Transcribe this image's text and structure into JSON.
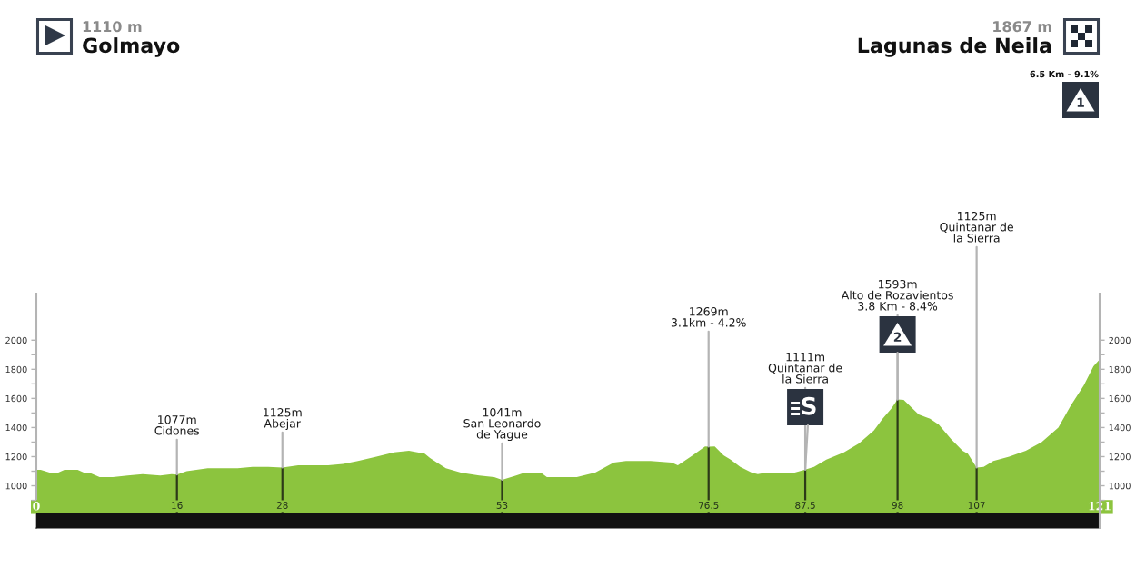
{
  "chart_data": {
    "type": "area",
    "color": "#8cc43e",
    "x": [
      0,
      0.5,
      1.5,
      2.5,
      3.2,
      4.7,
      5.4,
      6.0,
      7.2,
      8.7,
      10.4,
      12.1,
      14.1,
      15.4,
      16,
      17.1,
      19.5,
      21.6,
      22.9,
      24.6,
      26.4,
      28,
      29.8,
      33.2,
      34.9,
      36.6,
      38.7,
      40.7,
      42.4,
      44.2,
      44.8,
      46.6,
      48.3,
      50.4,
      52.1,
      53,
      54.6,
      55.6,
      57.4,
      58.1,
      60.1,
      61.5,
      63.6,
      65.7,
      67.1,
      67.8,
      69.9,
      72.3,
      73.0,
      74.7,
      76.1,
      76.5,
      77.2,
      78.2,
      79.0,
      80.1,
      81.4,
      82.1,
      83.1,
      84.9,
      86.3,
      87.5,
      88.5,
      89.9,
      91.9,
      93.6,
      95.3,
      96.3,
      97.3,
      98,
      98.7,
      100.4,
      101.7,
      102.7,
      104.1,
      105.4,
      106.0,
      107,
      107.8,
      108.9,
      110.7,
      112.6,
      114.4,
      116.3,
      117.7,
      119.2,
      120.3,
      121
    ],
    "values": [
      1110,
      1110,
      1090,
      1090,
      1110,
      1110,
      1090,
      1090,
      1060,
      1060,
      1070,
      1080,
      1070,
      1080,
      1077,
      1100,
      1120,
      1120,
      1120,
      1130,
      1130,
      1125,
      1140,
      1140,
      1150,
      1170,
      1200,
      1230,
      1240,
      1220,
      1190,
      1120,
      1090,
      1070,
      1060,
      1041,
      1070,
      1090,
      1090,
      1060,
      1060,
      1060,
      1090,
      1160,
      1170,
      1170,
      1170,
      1160,
      1140,
      1210,
      1270,
      1269,
      1270,
      1210,
      1180,
      1130,
      1090,
      1080,
      1090,
      1090,
      1090,
      1111,
      1130,
      1180,
      1230,
      1290,
      1380,
      1460,
      1530,
      1593,
      1590,
      1490,
      1460,
      1420,
      1320,
      1240,
      1220,
      1125,
      1130,
      1170,
      1200,
      1240,
      1300,
      1400,
      1550,
      1690,
      1820,
      1867
    ],
    "xlim": [
      0,
      121
    ],
    "xticks": [
      0,
      16,
      28,
      53,
      76.5,
      87.5,
      98,
      107,
      121
    ],
    "ylim": [
      710,
      2320
    ],
    "yticks": [
      {
        "value": 900,
        "label": null
      },
      1000,
      {
        "value": 1100,
        "label": null
      },
      1200,
      {
        "value": 1300,
        "label": null
      },
      1400,
      {
        "value": 1500,
        "label": null
      },
      1600,
      {
        "value": 1700,
        "label": null
      },
      1800,
      {
        "value": 1900,
        "label": null
      },
      2000
    ],
    "y2lim": [
      710,
      2320
    ],
    "y2ticks": [
      {
        "value": 900,
        "label": null
      },
      1000,
      {
        "value": 1100,
        "label": null
      },
      1200,
      {
        "value": 1300,
        "label": null
      },
      1400,
      {
        "value": 1500,
        "label": null
      },
      1600,
      {
        "value": 1700,
        "label": null
      },
      1800,
      {
        "value": 1900,
        "label": null
      },
      2000
    ],
    "bands": [
      {
        "axis": "y",
        "from": 710,
        "to": 810,
        "color": "#111111"
      }
    ],
    "annotations": [
      "1110 m",
      "Golmayo",
      "1867 m",
      "Lagunas de Neila",
      "6.5 Km - 9.1%",
      "1",
      {
        "text": "1077m\nCidones",
        "x": 16,
        "y": 1077
      },
      {
        "text": "1125m\nAbejar",
        "x": 28,
        "y": 1125
      },
      {
        "text": "1041m\nSan Leonardo\nde Yague",
        "x": 53,
        "y": 1041
      },
      {
        "text": "1269m\n3.1km - 4.2%",
        "x": 76.5,
        "y": 1269
      },
      {
        "text": "1111m\nQuintanar de\nla Sierra",
        "x": 87.5,
        "y": 1111
      },
      {
        "text": "S",
        "x": 87.5,
        "y": 1111
      },
      {
        "text": "1593m\nAlto de Rozavientos\n3.8 Km - 8.4%",
        "x": 98,
        "y": 1593
      },
      {
        "text": "2",
        "x": 98,
        "y": 1593
      },
      {
        "text": "1125m\nQuintanar de\nla Sierra",
        "x": 107,
        "y": 1125
      }
    ]
  }
}
